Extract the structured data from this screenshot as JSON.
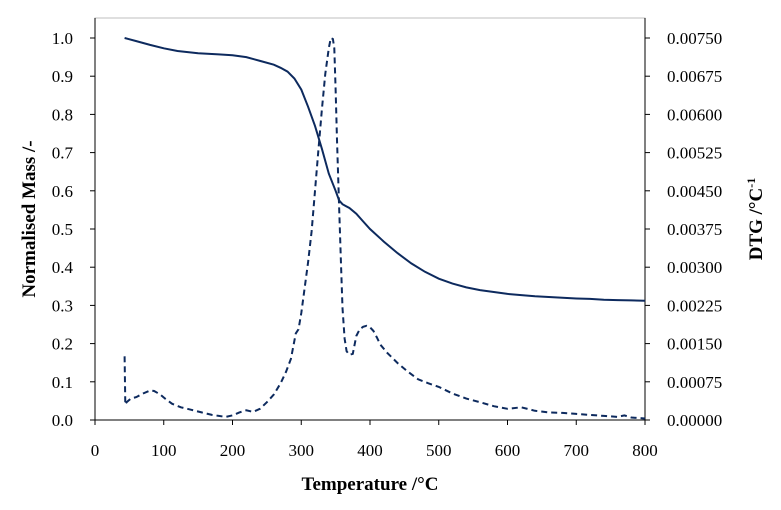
{
  "chart_data": {
    "type": "line",
    "xlabel": "Temperature /°C",
    "ylabel_left": "Normalised Mass /-",
    "ylabel_right_main": "DTG  /°C",
    "ylabel_right_sup": "-1",
    "xlim": [
      0,
      800
    ],
    "ylim_left": [
      0.0,
      1.0
    ],
    "ylim_right": [
      0.0,
      0.0075
    ],
    "x_ticks": [
      "0",
      "100",
      "200",
      "300",
      "400",
      "500",
      "600",
      "700",
      "800"
    ],
    "y_left_ticks": [
      "0.0",
      "0.1",
      "0.2",
      "0.3",
      "0.4",
      "0.5",
      "0.6",
      "0.7",
      "0.8",
      "0.9",
      "1.0"
    ],
    "y_right_ticks": [
      "0.00000",
      "0.00075",
      "0.00150",
      "0.00225",
      "0.00300",
      "0.00375",
      "0.00450",
      "0.00525",
      "0.00600",
      "0.00675",
      "0.00750"
    ],
    "grid": false,
    "legend": "none",
    "line_color": "#0d2a5e",
    "series": [
      {
        "axis": "left",
        "style": "solid",
        "x": [
          43,
          60,
          80,
          100,
          120,
          150,
          180,
          200,
          220,
          240,
          260,
          270,
          280,
          290,
          300,
          310,
          320,
          330,
          340,
          350,
          355,
          360,
          365,
          370,
          380,
          390,
          400,
          420,
          440,
          460,
          480,
          500,
          520,
          540,
          560,
          580,
          600,
          620,
          640,
          660,
          680,
          700,
          720,
          740,
          760,
          780,
          800
        ],
        "y": [
          1.0,
          0.992,
          0.982,
          0.973,
          0.966,
          0.96,
          0.957,
          0.955,
          0.95,
          0.94,
          0.93,
          0.922,
          0.912,
          0.894,
          0.865,
          0.82,
          0.77,
          0.71,
          0.645,
          0.6,
          0.575,
          0.565,
          0.56,
          0.555,
          0.54,
          0.52,
          0.5,
          0.467,
          0.437,
          0.41,
          0.388,
          0.37,
          0.357,
          0.347,
          0.34,
          0.335,
          0.33,
          0.327,
          0.324,
          0.322,
          0.32,
          0.318,
          0.317,
          0.315,
          0.314,
          0.313,
          0.312
        ]
      },
      {
        "axis": "right",
        "style": "dashed",
        "x": [
          43,
          44,
          46,
          52,
          60,
          70,
          80,
          86,
          95,
          102,
          112,
          125,
          140,
          155,
          170,
          180,
          190,
          200,
          210,
          220,
          230,
          240,
          250,
          260,
          270,
          278,
          285,
          292,
          296,
          300,
          305,
          310,
          315,
          320,
          325,
          330,
          335,
          340,
          343,
          346,
          348,
          350,
          352,
          355,
          358,
          360,
          363,
          366,
          370,
          375,
          380,
          385,
          390,
          395,
          400,
          405,
          410,
          415,
          425,
          440,
          455,
          470,
          485,
          500,
          520,
          540,
          560,
          580,
          600,
          620,
          640,
          660,
          680,
          700,
          720,
          740,
          760,
          770,
          780,
          790,
          800
        ],
        "y": [
          0.00125,
          0.0003,
          0.00035,
          0.00042,
          0.00045,
          0.00052,
          0.00058,
          0.00057,
          0.0005,
          0.00042,
          0.00032,
          0.00025,
          0.0002,
          0.00015,
          0.0001,
          8e-05,
          6e-05,
          9e-05,
          0.00015,
          0.00019,
          0.00016,
          0.00022,
          0.00035,
          0.0005,
          0.00072,
          0.00095,
          0.0012,
          0.0017,
          0.00178,
          0.0021,
          0.0026,
          0.0031,
          0.0037,
          0.0045,
          0.0053,
          0.0061,
          0.0068,
          0.0073,
          0.0075,
          0.00748,
          0.0073,
          0.0065,
          0.0055,
          0.0042,
          0.003,
          0.0022,
          0.0016,
          0.00135,
          0.00128,
          0.0013,
          0.00165,
          0.00178,
          0.00183,
          0.00185,
          0.00182,
          0.00175,
          0.00162,
          0.00148,
          0.00132,
          0.00112,
          0.00095,
          0.0008,
          0.00072,
          0.00065,
          0.00052,
          0.00042,
          0.00035,
          0.00027,
          0.00022,
          0.00025,
          0.00018,
          0.00015,
          0.00014,
          0.00012,
          0.0001,
          8e-05,
          6e-05,
          9e-05,
          5e-05,
          4e-05,
          3e-05
        ]
      }
    ]
  }
}
